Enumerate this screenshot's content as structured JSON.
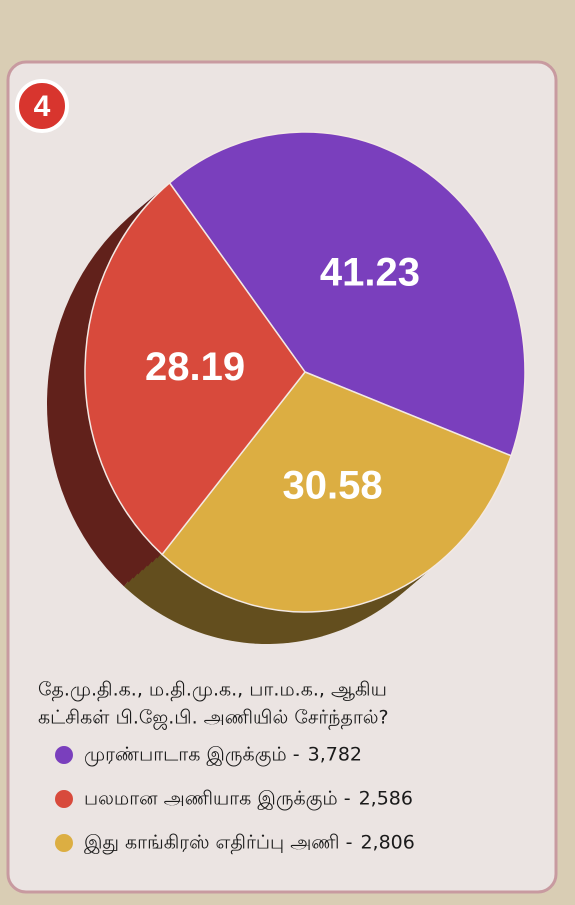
{
  "chart_data": {
    "type": "pie",
    "badge": "4",
    "title": [
      "தே.மு.தி.க., ம.தி.மு.க., பா.ம.க., ஆகிய",
      "கட்சிகள் பி.ஜே.பி. அணியில் சேர்ந்தால்?"
    ],
    "categories": [
      "முரண்பாடாக இருக்கும் -",
      "பலமான அணியாக இருக்கும் -",
      "இது காங்கிரஸ் எதிர்ப்பு அணி -"
    ],
    "values": [
      41.23,
      28.19,
      30.58
    ],
    "colors": [
      "#7a3fbd",
      "#d84a3c",
      "#dcae42"
    ],
    "counts": {
      "values": [
        3782,
        2586,
        2806
      ],
      "value_labels": [
        "3,782",
        "2,586",
        "2,806"
      ]
    }
  }
}
